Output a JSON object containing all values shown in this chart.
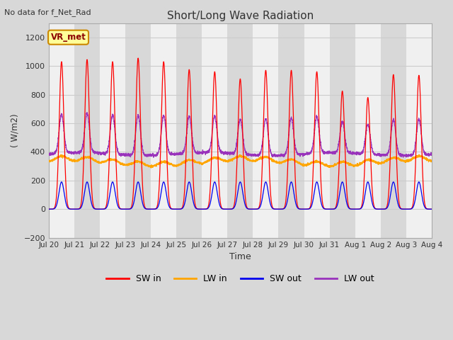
{
  "title": "Short/Long Wave Radiation",
  "xlabel": "Time",
  "ylabel": "( W/m2)",
  "top_label": "No data for f_Net_Rad",
  "legend_label": "VR_met",
  "ylim": [
    -200,
    1300
  ],
  "yticks": [
    -200,
    0,
    200,
    400,
    600,
    800,
    1000,
    1200
  ],
  "x_tick_labels": [
    "Jul 20",
    "Jul 21",
    "Jul 22",
    "Jul 23",
    "Jul 24",
    "Jul 25",
    "Jul 26",
    "Jul 27",
    "Jul 28",
    "Jul 29",
    "Jul 30",
    "Jul 31",
    "Aug 1",
    "Aug 2",
    "Aug 3",
    "Aug 4"
  ],
  "n_days": 15,
  "background_color": "#d8d8d8",
  "plot_bg_color": "#ffffff",
  "sw_in_color": "#ff0000",
  "lw_in_color": "#ffa500",
  "sw_out_color": "#0000ee",
  "lw_out_color": "#9933bb",
  "grid_color": "#cccccc",
  "band_light": "#f0f0f0",
  "band_dark": "#d8d8d8",
  "legend_box_color": "#ffff99",
  "legend_box_edge": "#cc8800",
  "sw_in_peaks": [
    1030,
    1045,
    1030,
    1055,
    1030,
    975,
    960,
    910,
    970,
    970,
    960,
    825,
    780,
    940,
    935
  ],
  "sw_out_peak": 190,
  "lw_in_base": 315,
  "lw_out_night": 385
}
